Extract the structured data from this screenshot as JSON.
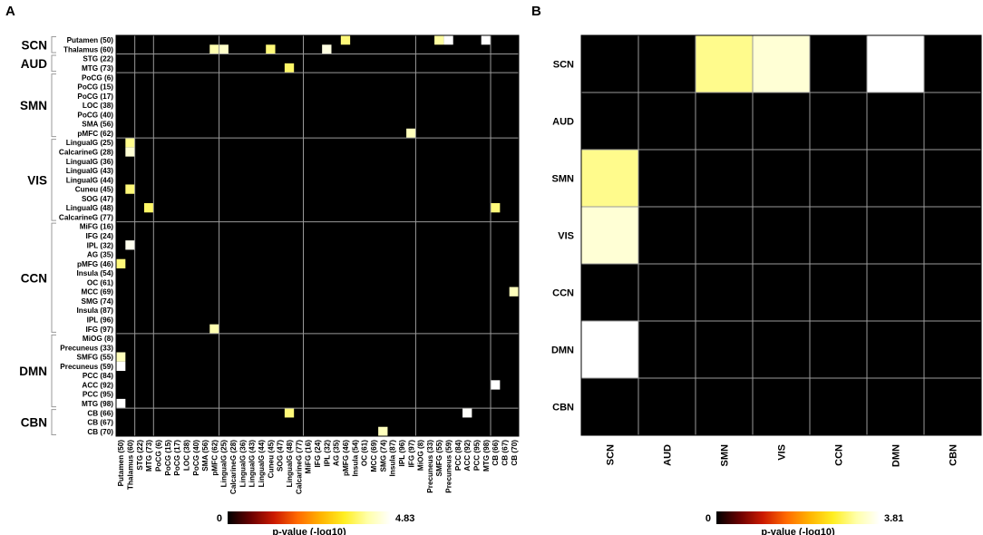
{
  "panel_a_letter": "A",
  "panel_b_letter": "B",
  "chart_data": [
    {
      "type": "heatmap",
      "panel": "A",
      "title": "",
      "rows": [
        "Putamen (50)",
        "Thalamus (60)",
        "STG (22)",
        "MTG (73)",
        "PoCG (6)",
        "PoCG (15)",
        "PoCG (17)",
        "LOC (38)",
        "PoCG (40)",
        "SMA (56)",
        "pMFC (62)",
        "LingualG (25)",
        "CalcarineG (28)",
        "LingualG (36)",
        "LingualG (43)",
        "LingualG (44)",
        "Cuneu (45)",
        "SOG (47)",
        "LingualG (48)",
        "CalcarineG (77)",
        "MiFG (16)",
        "IFG (24)",
        "IPL (32)",
        "AG (35)",
        "pMFG (46)",
        "Insula (54)",
        "OC (61)",
        "MCC (69)",
        "SMG (74)",
        "Insula (87)",
        "IPL (96)",
        "IFG (97)",
        "MiOG (8)",
        "Precuneus (33)",
        "SMFG (55)",
        "Precuneus (59)",
        "PCC (84)",
        "ACC (92)",
        "PCC (95)",
        "MTG (98)",
        "CB (66)",
        "CB (67)",
        "CB (70)"
      ],
      "columns": [
        "Putamen (50)",
        "Thalamus (60)",
        "STG (22)",
        "MTG (73)",
        "PoCG (6)",
        "PoCG (15)",
        "PoCG (17)",
        "LOC (38)",
        "PoCG (40)",
        "SMA (56)",
        "pMFC (62)",
        "LingualG (25)",
        "CalcarineG (28)",
        "LingualG (36)",
        "LingualG (43)",
        "LingualG (44)",
        "Cuneu (45)",
        "SOG (47)",
        "LingualG (48)",
        "CalcarineG (77)",
        "MiFG (16)",
        "IFG (24)",
        "IPL (32)",
        "AG (35)",
        "pMFG (46)",
        "Insula (54)",
        "OC (61)",
        "MCC (69)",
        "SMG (74)",
        "Insula (87)",
        "IPL (96)",
        "IFG (97)",
        "MiOG (8)",
        "Precuneus (33)",
        "SMFG (55)",
        "Precuneus (59)",
        "PCC (84)",
        "ACC (92)",
        "PCC (95)",
        "MTG (98)",
        "CB (66)",
        "CB (67)",
        "CB (70)"
      ],
      "networks": [
        {
          "name": "SCN",
          "start": 0,
          "end": 1
        },
        {
          "name": "AUD",
          "start": 2,
          "end": 3
        },
        {
          "name": "SMN",
          "start": 4,
          "end": 10
        },
        {
          "name": "VIS",
          "start": 11,
          "end": 19
        },
        {
          "name": "CCN",
          "start": 20,
          "end": 31
        },
        {
          "name": "DMN",
          "start": 32,
          "end": 39
        },
        {
          "name": "CBN",
          "start": 40,
          "end": 42
        }
      ],
      "cells": [
        {
          "row": 0,
          "col": 24,
          "value": 3.9
        },
        {
          "row": 0,
          "col": 34,
          "value": 4.1
        },
        {
          "row": 0,
          "col": 35,
          "value": 4.83
        },
        {
          "row": 0,
          "col": 39,
          "value": 4.83
        },
        {
          "row": 1,
          "col": 10,
          "value": 4.2
        },
        {
          "row": 1,
          "col": 11,
          "value": 4.4
        },
        {
          "row": 1,
          "col": 16,
          "value": 3.9
        },
        {
          "row": 1,
          "col": 22,
          "value": 4.6
        },
        {
          "row": 3,
          "col": 18,
          "value": 3.8
        },
        {
          "row": 10,
          "col": 31,
          "value": 4.3
        },
        {
          "row": 11,
          "col": 1,
          "value": 4.0
        },
        {
          "row": 12,
          "col": 1,
          "value": 4.5
        },
        {
          "row": 16,
          "col": 1,
          "value": 3.9
        },
        {
          "row": 18,
          "col": 3,
          "value": 3.8
        },
        {
          "row": 18,
          "col": 40,
          "value": 3.9
        },
        {
          "row": 22,
          "col": 1,
          "value": 4.7
        },
        {
          "row": 24,
          "col": 0,
          "value": 3.9
        },
        {
          "row": 27,
          "col": 42,
          "value": 4.3
        },
        {
          "row": 31,
          "col": 10,
          "value": 4.2
        },
        {
          "row": 34,
          "col": 0,
          "value": 4.3
        },
        {
          "row": 35,
          "col": 0,
          "value": 4.83
        },
        {
          "row": 37,
          "col": 40,
          "value": 4.83
        },
        {
          "row": 39,
          "col": 0,
          "value": 4.83
        },
        {
          "row": 40,
          "col": 18,
          "value": 3.9
        },
        {
          "row": 40,
          "col": 37,
          "value": 4.8
        },
        {
          "row": 42,
          "col": 28,
          "value": 4.3
        }
      ],
      "colorbar": {
        "min_label": "0",
        "max_label": "4.83",
        "vmin": 0,
        "vmax": 4.83,
        "label": "p-value (-log10)"
      },
      "colormap": [
        "#000000",
        "#6a0000",
        "#cc1a00",
        "#ff6a00",
        "#ffb400",
        "#ffee22",
        "#ffffa8",
        "#ffffff"
      ]
    },
    {
      "type": "heatmap",
      "panel": "B",
      "title": "",
      "rows": [
        "SCN",
        "AUD",
        "SMN",
        "VIS",
        "CCN",
        "DMN",
        "CBN"
      ],
      "columns": [
        "SCN",
        "AUD",
        "SMN",
        "VIS",
        "CCN",
        "DMN",
        "CBN"
      ],
      "values": [
        [
          0,
          0,
          3.15,
          3.55,
          0,
          3.81,
          0
        ],
        [
          0,
          0,
          0,
          0,
          0,
          0,
          0
        ],
        [
          3.15,
          0,
          0,
          0,
          0,
          0,
          0
        ],
        [
          3.55,
          0,
          0,
          0,
          0,
          0,
          0
        ],
        [
          0,
          0,
          0,
          0,
          0,
          0,
          0
        ],
        [
          3.81,
          0,
          0,
          0,
          0,
          0,
          0
        ],
        [
          0,
          0,
          0,
          0,
          0,
          0,
          0
        ]
      ],
      "colorbar": {
        "min_label": "0",
        "max_label": "3.81",
        "vmin": 0,
        "vmax": 3.81,
        "label": "p-value (-log10)"
      },
      "colormap": [
        "#000000",
        "#6a0000",
        "#cc1a00",
        "#ff6a00",
        "#ffb400",
        "#ffee22",
        "#ffffa8",
        "#ffffff"
      ]
    }
  ]
}
